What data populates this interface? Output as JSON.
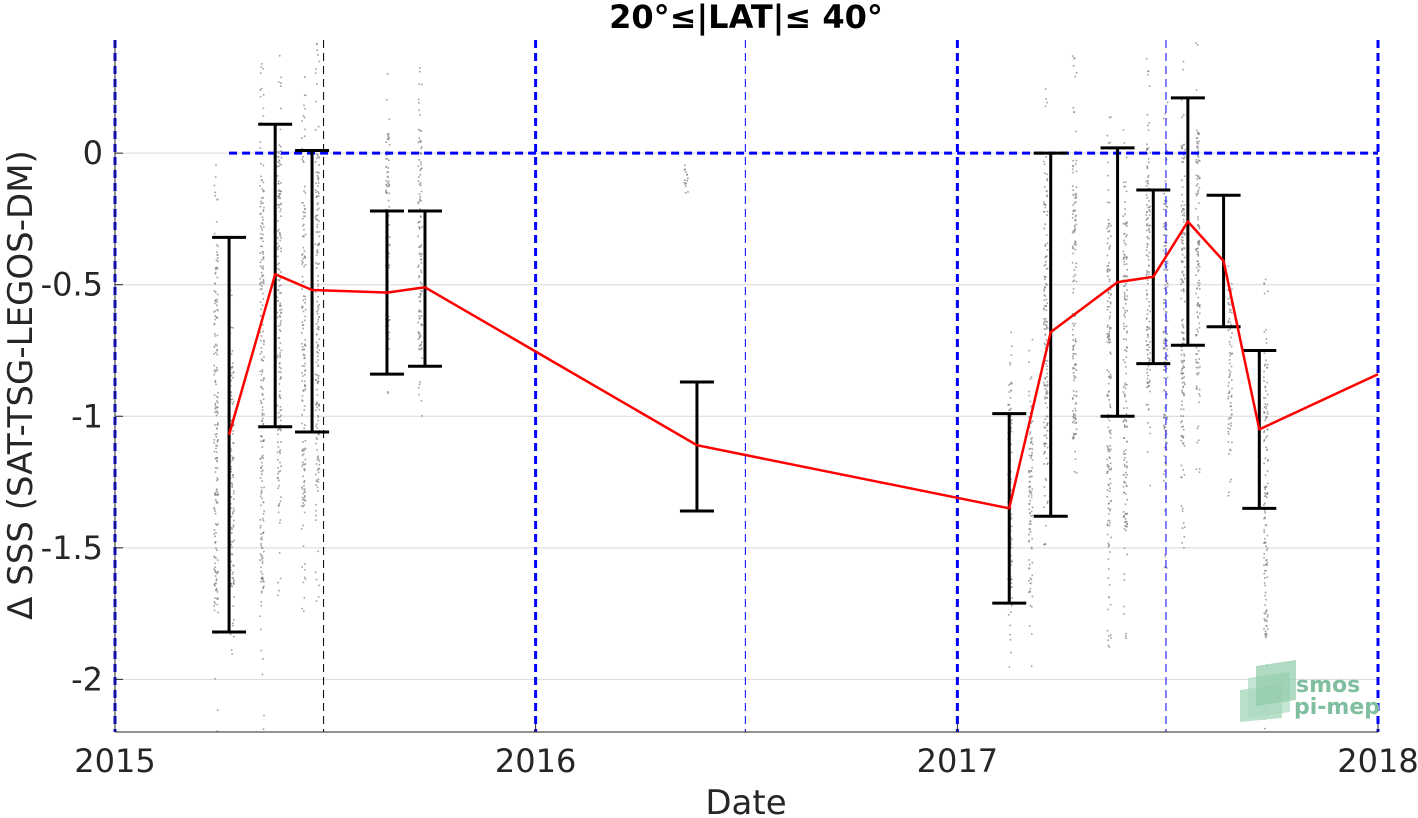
{
  "chart_data": {
    "type": "line",
    "title": "20°≤|LAT|≤ 40°",
    "xlabel": "Date",
    "ylabel": "Δ SSS (SAT-TSG-LEGOS-DM)",
    "xlim": [
      "2015-01-01",
      "2018-01-01"
    ],
    "ylim": [
      -2.2,
      0.43
    ],
    "x_ticks": [
      "2015",
      "2016",
      "2017",
      "2018"
    ],
    "y_ticks": [
      0,
      -0.5,
      -1,
      -1.5,
      -2
    ],
    "y_tick_labels": [
      "0",
      "-0.5",
      "-1",
      "-1.5",
      "-2"
    ],
    "grid": "horizontal",
    "series": [
      {
        "color": "#ff0000",
        "x": [
          "2015-04-10",
          "2015-05-20",
          "2015-06-21",
          "2015-08-25",
          "2015-09-27",
          "2016-05-20",
          "2017-02-15",
          "2017-03-23",
          "2017-05-20",
          "2017-06-20",
          "2017-07-20",
          "2017-08-20",
          "2017-09-20",
          "2018-01-01"
        ],
        "y": [
          -1.07,
          -0.46,
          -0.52,
          -0.53,
          -0.51,
          -1.11,
          -1.35,
          -0.68,
          -0.49,
          -0.47,
          -0.26,
          -0.41,
          -1.05,
          -0.84
        ]
      }
    ],
    "error_bars": [
      {
        "x": "2015-04-10",
        "low": -1.82,
        "high": -0.32
      },
      {
        "x": "2015-05-20",
        "low": -1.04,
        "high": 0.11
      },
      {
        "x": "2015-06-21",
        "low": -1.06,
        "high": 0.01
      },
      {
        "x": "2015-08-25",
        "low": -0.84,
        "high": -0.22
      },
      {
        "x": "2015-09-27",
        "low": -0.81,
        "high": -0.22
      },
      {
        "x": "2016-05-20",
        "low": -1.36,
        "high": -0.87
      },
      {
        "x": "2017-02-15",
        "low": -1.71,
        "high": -0.99
      },
      {
        "x": "2017-03-23",
        "low": -1.38,
        "high": 0.0
      },
      {
        "x": "2017-05-20",
        "low": -1.0,
        "high": 0.02
      },
      {
        "x": "2017-06-20",
        "low": -0.8,
        "high": -0.14
      },
      {
        "x": "2017-07-20",
        "low": -0.73,
        "high": 0.21
      },
      {
        "x": "2017-08-20",
        "low": -0.66,
        "high": -0.16
      },
      {
        "x": "2017-09-20",
        "low": -1.35,
        "high": -0.75
      }
    ],
    "scatter_columns": [
      {
        "x": "2015-03-29",
        "low": -2.2,
        "high": 0.08
      },
      {
        "x": "2015-04-12",
        "low": -1.95,
        "high": -0.5
      },
      {
        "x": "2015-05-08",
        "low": -2.2,
        "high": 0.43
      },
      {
        "x": "2015-05-23",
        "low": -1.7,
        "high": 0.43
      },
      {
        "x": "2015-06-13",
        "low": -1.75,
        "high": 0.3
      },
      {
        "x": "2015-06-25",
        "low": -1.7,
        "high": 0.43
      },
      {
        "x": "2015-08-25",
        "low": -0.95,
        "high": 0.38
      },
      {
        "x": "2015-09-22",
        "low": -1.05,
        "high": 0.38
      },
      {
        "x": "2016-05-10",
        "low": -0.2,
        "high": -0.02
      },
      {
        "x": "2017-02-15",
        "low": -1.95,
        "high": -0.6
      },
      {
        "x": "2017-03-05",
        "low": -1.95,
        "high": -0.7
      },
      {
        "x": "2017-03-18",
        "low": -1.55,
        "high": 0.3
      },
      {
        "x": "2017-04-12",
        "low": -1.45,
        "high": 0.38
      },
      {
        "x": "2017-05-12",
        "low": -1.9,
        "high": 0.15
      },
      {
        "x": "2017-05-26",
        "low": -1.85,
        "high": 0.15
      },
      {
        "x": "2017-06-15",
        "low": -1.3,
        "high": 0.38
      },
      {
        "x": "2017-06-30",
        "low": -1.6,
        "high": 0.25
      },
      {
        "x": "2017-07-15",
        "low": -1.5,
        "high": 0.43
      },
      {
        "x": "2017-07-28",
        "low": -1.25,
        "high": 0.43
      },
      {
        "x": "2017-08-25",
        "low": -1.3,
        "high": -0.3
      },
      {
        "x": "2017-09-25",
        "low": -2.2,
        "high": -0.45
      }
    ],
    "reference_lines": {
      "horizontal_y": 0,
      "horizontal_from": "2015-04-10",
      "year_lines": [
        "2015-01-01",
        "2016-01-01",
        "2017-01-01",
        "2018-01-01"
      ],
      "half_year_lines_blue": [
        "2016-07-01",
        "2017-07-01"
      ],
      "half_year_lines_black": [
        "2015-07-01"
      ]
    },
    "colors": {
      "mean_line": "#ff0000",
      "error_bars": "#000000",
      "reference": "#0000ff",
      "scatter": "#808080"
    }
  },
  "logo": {
    "line1": "smos",
    "line2": "pi-mep"
  }
}
